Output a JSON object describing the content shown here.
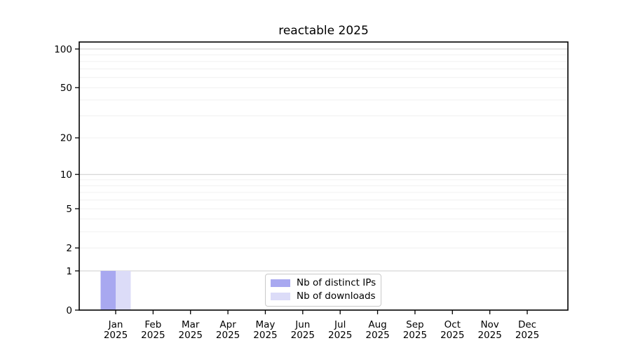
{
  "chart_data": {
    "type": "bar",
    "title": "reactable 2025",
    "x_tick_label_line2": "2025",
    "categories": [
      "Jan",
      "Feb",
      "Mar",
      "Apr",
      "May",
      "Jun",
      "Jul",
      "Aug",
      "Sep",
      "Oct",
      "Nov",
      "Dec"
    ],
    "series": [
      {
        "name": "Nb of distinct IPs",
        "color": "#a8a8f0",
        "values": [
          1,
          0,
          0,
          0,
          0,
          0,
          0,
          0,
          0,
          0,
          0,
          0
        ]
      },
      {
        "name": "Nb of downloads",
        "color": "#dcdcf8",
        "values": [
          1,
          0,
          0,
          0,
          0,
          0,
          0,
          0,
          0,
          0,
          0,
          0
        ]
      }
    ],
    "xlabel": "",
    "ylabel": "",
    "yscale": "log1p",
    "y_tick_values": [
      0,
      1,
      2,
      5,
      10,
      20,
      50,
      100
    ],
    "y_major_gridlines": [
      1,
      10,
      100
    ],
    "y_minor_gridlines": [
      2,
      3,
      4,
      5,
      6,
      7,
      8,
      9,
      20,
      30,
      40,
      50,
      60,
      70,
      80,
      90
    ],
    "ylim": [
      0,
      113
    ],
    "grid": true,
    "legend_position": "bottom-center",
    "colors": {
      "axis": "#000000",
      "major_gridline": "#cccccc",
      "minor_gridline": "#f0f0f0",
      "tick_label": "#000000",
      "legend_border": "#c9c9c9",
      "background": "#ffffff"
    }
  }
}
